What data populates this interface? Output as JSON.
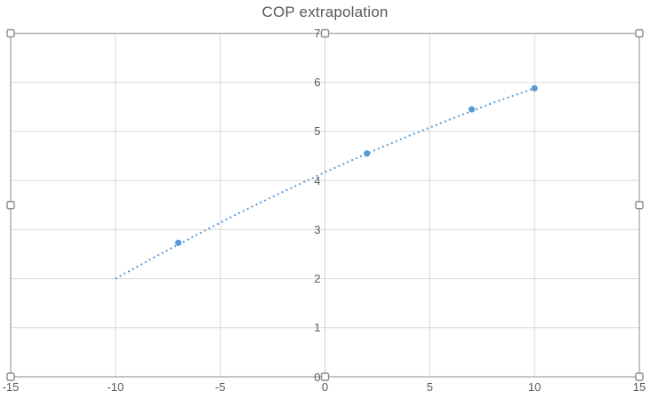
{
  "title": "COP extrapolation",
  "colors": {
    "series": "#5B9BD5",
    "gridline": "#D9D9D9",
    "zero_line": "#CFCFCF",
    "plot_border": "#ADADAD",
    "axis_text": "#595959",
    "title_text": "#595959",
    "handle_border": "#8C8C8C",
    "handle_fill": "#FFFFFF",
    "background": "#FFFFFF"
  },
  "selection": {
    "selected": true,
    "handle_count": 8
  },
  "chart_data": {
    "type": "scatter",
    "title": "COP extrapolation",
    "points": [
      {
        "x": -7,
        "y": 2.73
      },
      {
        "x": 2,
        "y": 4.55
      },
      {
        "x": 7,
        "y": 5.45
      },
      {
        "x": 10,
        "y": 5.88
      }
    ],
    "trendline": {
      "style": "dotted",
      "x_range": [
        -10,
        10
      ],
      "samples": [
        {
          "x": -10,
          "y": 2.0
        },
        {
          "x": -8,
          "y": 2.47
        },
        {
          "x": -6,
          "y": 2.92
        },
        {
          "x": -4,
          "y": 3.36
        },
        {
          "x": -2,
          "y": 3.77
        },
        {
          "x": 0,
          "y": 4.17
        },
        {
          "x": 2,
          "y": 4.55
        },
        {
          "x": 4,
          "y": 4.91
        },
        {
          "x": 6,
          "y": 5.25
        },
        {
          "x": 8,
          "y": 5.58
        },
        {
          "x": 10,
          "y": 5.88
        }
      ]
    },
    "xticks": [
      -15,
      -10,
      -5,
      0,
      5,
      10,
      15
    ],
    "yticks": [
      0,
      1,
      2,
      3,
      4,
      5,
      6,
      7
    ],
    "xlim": [
      -15,
      15
    ],
    "ylim": [
      0,
      7
    ],
    "grid": true,
    "legend": "none"
  }
}
